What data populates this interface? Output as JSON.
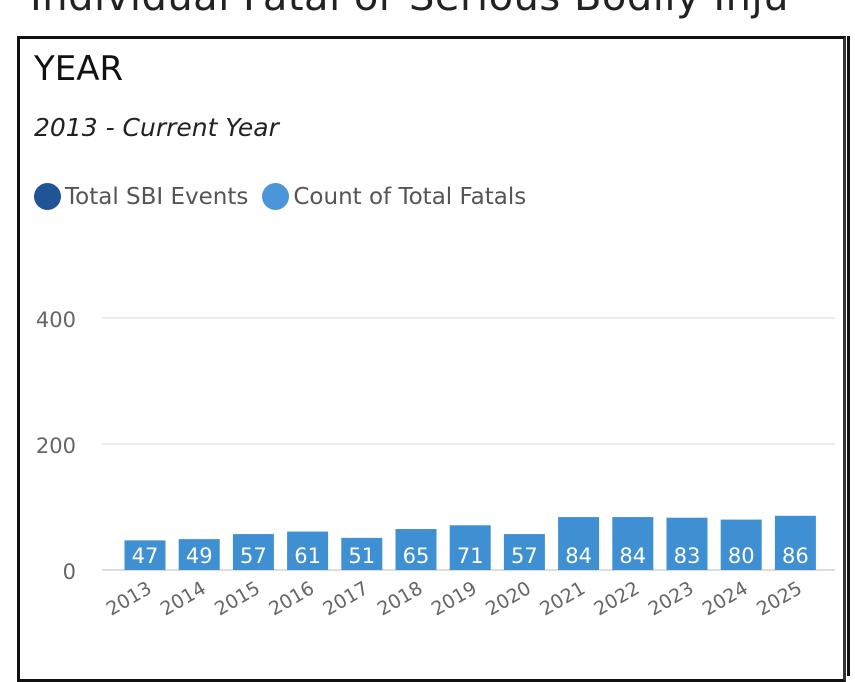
{
  "page": {
    "title": "Individual Fatal or Serious Bodily Inju"
  },
  "chart_data": {
    "type": "bar",
    "title": "YEAR",
    "subtitle": "2013 - Current Year",
    "legend": [
      {
        "label": "Total SBI Events",
        "color": "#1f5597"
      },
      {
        "label": "Count of Total Fatals",
        "color": "#4a96d8"
      }
    ],
    "legend_position": "top-left",
    "categories": [
      "2013",
      "2014",
      "2015",
      "2016",
      "2017",
      "2018",
      "2019",
      "2020",
      "2021",
      "2022",
      "2023",
      "2024",
      "2025"
    ],
    "series": [
      {
        "name": "Count of Total Fatals",
        "values": [
          47,
          49,
          57,
          61,
          51,
          65,
          71,
          57,
          84,
          84,
          83,
          80,
          86
        ],
        "color": "#3f8fd3"
      }
    ],
    "yticks": [
      0,
      200,
      400
    ],
    "ylim": [
      0,
      400
    ],
    "grid": true,
    "xlabel": "",
    "ylabel": ""
  }
}
